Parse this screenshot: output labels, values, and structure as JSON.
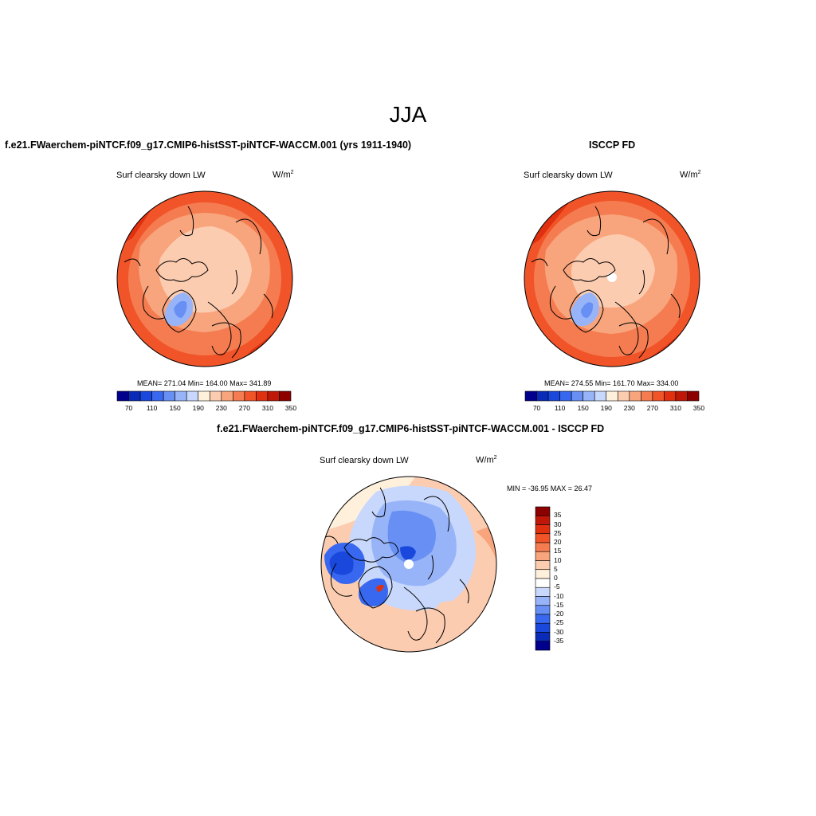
{
  "main_title": "JJA",
  "panels": [
    {
      "title": "f.e21.FWaerchem-piNTCF.f09_g17.CMIP6-histSST-piNTCF-WACCM.001 (yrs 1911-1940)",
      "variable": "Surf clearsky down LW",
      "units": "W/m",
      "units_exp": "2",
      "stats_text": "MEAN= 271.04  Min= 164.00  Max= 341.89",
      "mean": 271.04,
      "min": 164.0,
      "max": 341.89
    },
    {
      "title": "ISCCP FD",
      "variable": "Surf clearsky down LW",
      "units": "W/m",
      "units_exp": "2",
      "stats_text": "MEAN= 274.55  Min= 161.70  Max= 334.00",
      "mean": 274.55,
      "min": 161.7,
      "max": 334.0
    },
    {
      "title": "f.e21.FWaerchem-piNTCF.f09_g17.CMIP6-histSST-piNTCF-WACCM.001 - ISCCP FD",
      "variable": "Surf clearsky down LW",
      "units": "W/m",
      "units_exp": "2",
      "stats_text": "MIN = -36.95 MAX =  26.47",
      "min": -36.95,
      "max": 26.47
    }
  ],
  "colorbar_abs": {
    "tick_labels": [
      "70",
      "110",
      "150",
      "190",
      "230",
      "270",
      "310",
      "350"
    ],
    "colors": [
      "#00008c",
      "#0a2ab8",
      "#1a48dc",
      "#3868f0",
      "#6890f4",
      "#98b4f8",
      "#c8d8fc",
      "#fff0dc",
      "#fcccb0",
      "#f8a47c",
      "#f47c50",
      "#f05428",
      "#e03010",
      "#c01808",
      "#8c0000"
    ]
  },
  "colorbar_diff": {
    "tick_labels": [
      "35",
      "30",
      "25",
      "20",
      "15",
      "10",
      "5",
      "0",
      "-5",
      "-10",
      "-15",
      "-20",
      "-25",
      "-30",
      "-35"
    ],
    "colors": [
      "#8c0000",
      "#c01808",
      "#e03010",
      "#f05428",
      "#f47c50",
      "#f8a47c",
      "#fcccb0",
      "#fff0dc",
      "#ffffff",
      "#c8d8fc",
      "#98b4f8",
      "#6890f4",
      "#3868f0",
      "#1a48dc",
      "#0a2ab8",
      "#00008c"
    ]
  }
}
